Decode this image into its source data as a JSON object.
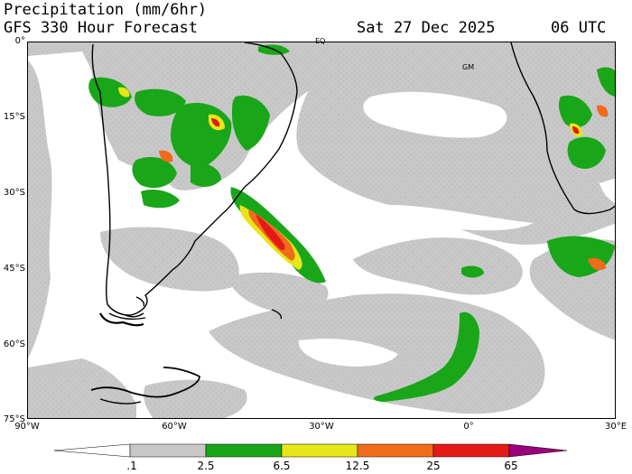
{
  "header": {
    "title": "Precipitation (mm/6hr)",
    "subtitle": "GFS 330 Hour Forecast",
    "date": "Sat 27 Dec 2025",
    "time": "06 UTC"
  },
  "map": {
    "lat_labels": [
      "0°",
      "15°S",
      "30°S",
      "45°S",
      "60°S",
      "75°S"
    ],
    "lon_labels": [
      "90°W",
      "60°W",
      "30°W",
      "0°",
      "30°E"
    ],
    "place_labels": [
      "EQ",
      "GM"
    ]
  },
  "colorbar": {
    "labels": [
      ".1",
      "2.5",
      "6.5",
      "12.5",
      "25",
      "65"
    ],
    "colors": [
      "#ffffff",
      "#c8c8c8",
      "#19a619",
      "#e6e619",
      "#f26b1a",
      "#e61919",
      "#99007a"
    ]
  }
}
